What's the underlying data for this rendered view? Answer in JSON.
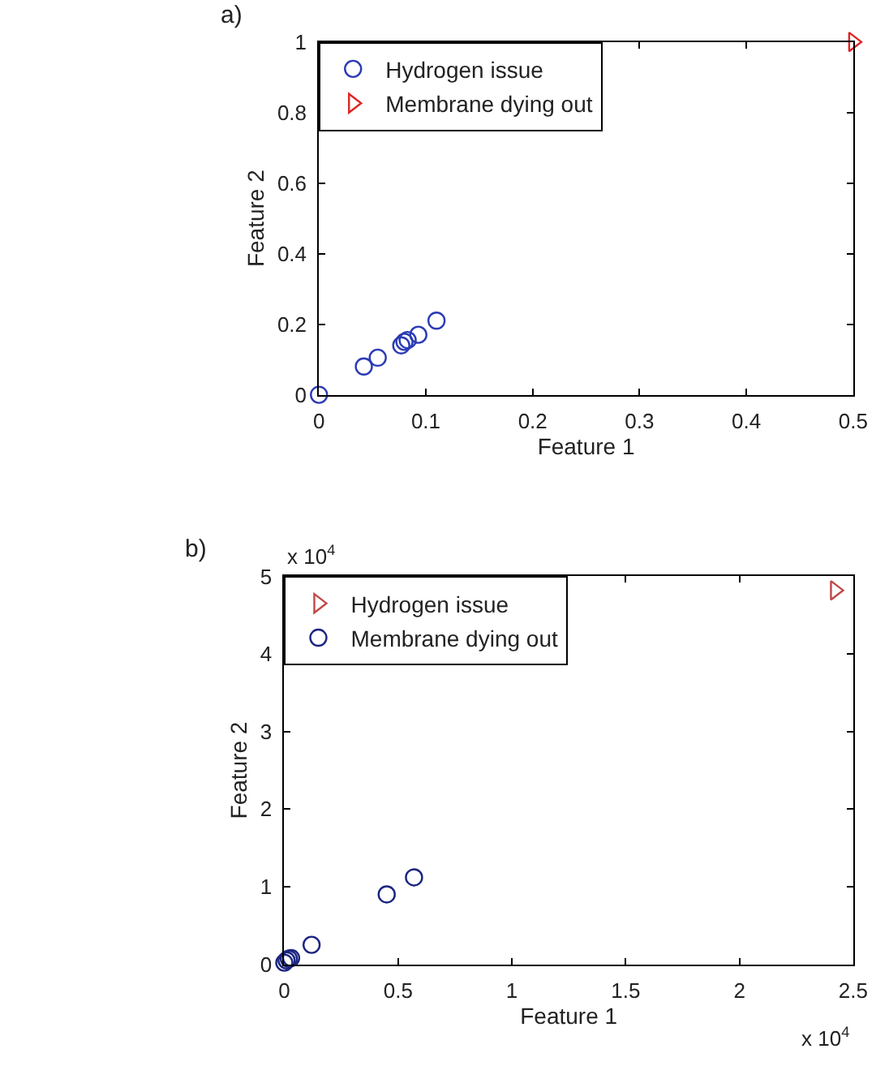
{
  "chart_data": [
    {
      "type": "scatter",
      "xlabel": "Feature 1",
      "ylabel": "Feature 2",
      "annotations": [
        "a)"
      ],
      "xlim": [
        0,
        0.5
      ],
      "xticks": [
        0,
        0.1,
        0.2,
        0.3,
        0.4,
        0.5
      ],
      "ylim": [
        0,
        1
      ],
      "yticks": [
        0,
        0.2,
        0.4,
        0.6,
        0.8,
        1
      ],
      "legend": "top left",
      "series": [
        {
          "name": "Hydrogen issue",
          "color": "#2b3bb5",
          "marker": "circle",
          "x": [
            0,
            0.042,
            0.055,
            0.077,
            0.08,
            0.083,
            0.093,
            0.11
          ],
          "values": [
            0,
            0.08,
            0.105,
            0.14,
            0.15,
            0.155,
            0.17,
            0.21
          ]
        },
        {
          "name": "Membrane dying out",
          "color": "#e02424",
          "marker": "triangle",
          "x": [
            0.5
          ],
          "values": [
            1.0
          ]
        }
      ]
    },
    {
      "type": "scatter",
      "xlabel": "Feature 1",
      "ylabel": "Feature 2",
      "annotations": [
        "b)",
        "x 10$^{4}$",
        "x 10$^{4}$"
      ],
      "xlim": [
        0,
        2.5
      ],
      "xticks": [
        0,
        0.5,
        1,
        1.5,
        2,
        2.5
      ],
      "ylim": [
        0,
        5
      ],
      "yticks": [
        0,
        1,
        2,
        3,
        4,
        5
      ],
      "legend": "top left",
      "series": [
        {
          "name": "Hydrogen issue",
          "color": "#c04848",
          "marker": "triangle",
          "x": [
            2.42
          ],
          "values": [
            4.82
          ]
        },
        {
          "name": "Membrane dying out",
          "color": "#1c2580",
          "marker": "circle",
          "x": [
            0,
            0.01,
            0.02,
            0.03,
            0.12,
            0.45,
            0.57
          ],
          "values": [
            0.02,
            0.05,
            0.07,
            0.08,
            0.25,
            0.9,
            1.12
          ]
        }
      ]
    }
  ]
}
